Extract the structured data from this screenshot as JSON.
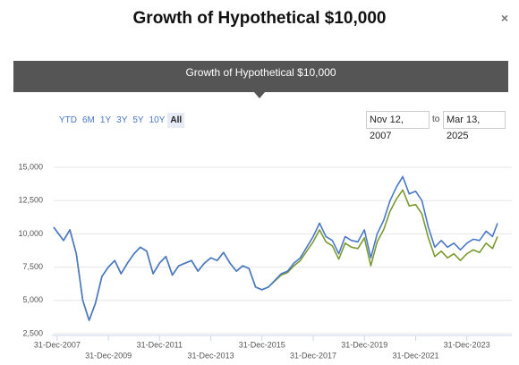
{
  "modal": {
    "title": "Growth of Hypothetical $10,000",
    "close": "×"
  },
  "range_buttons": [
    "YTD",
    "6M",
    "1Y",
    "3Y",
    "5Y",
    "10Y",
    "All"
  ],
  "range_selected": "All",
  "date_from": "Nov 12, 2007",
  "date_to": "Mar 13, 2025",
  "to_label": "to",
  "chart_data": {
    "type": "line",
    "title": "Growth of Hypothetical $10,000",
    "x": [
      "2007-11-12",
      "2008-03-31",
      "2008-06-30",
      "2008-09-30",
      "2008-12-31",
      "2009-03-31",
      "2009-06-30",
      "2009-09-30",
      "2009-12-31",
      "2010-03-31",
      "2010-06-30",
      "2010-09-30",
      "2010-12-31",
      "2011-03-31",
      "2011-06-30",
      "2011-09-30",
      "2011-12-31",
      "2012-03-31",
      "2012-06-30",
      "2012-09-30",
      "2012-12-31",
      "2013-03-31",
      "2013-06-30",
      "2013-09-30",
      "2013-12-31",
      "2014-03-31",
      "2014-06-30",
      "2014-09-30",
      "2014-12-31",
      "2015-03-31",
      "2015-06-30",
      "2015-09-30",
      "2015-12-31",
      "2016-03-31",
      "2016-06-30",
      "2016-09-30",
      "2016-12-31",
      "2017-03-31",
      "2017-06-30",
      "2017-09-30",
      "2017-12-31",
      "2018-03-31",
      "2018-06-30",
      "2018-09-30",
      "2018-12-31",
      "2019-03-31",
      "2019-06-30",
      "2019-09-30",
      "2019-12-31",
      "2020-03-31",
      "2020-06-30",
      "2020-09-30",
      "2020-12-31",
      "2021-03-31",
      "2021-06-30",
      "2021-09-30",
      "2021-12-31",
      "2022-03-31",
      "2022-06-30",
      "2022-09-30",
      "2022-12-31",
      "2023-03-31",
      "2023-06-30",
      "2023-09-30",
      "2023-12-31",
      "2024-03-31",
      "2024-06-30",
      "2024-09-30",
      "2024-12-31",
      "2025-03-13"
    ],
    "series": [
      {
        "color": "#7a9a2e",
        "values": [
          10500,
          9500,
          10300,
          8500,
          5000,
          3500,
          4800,
          6800,
          7500,
          8000,
          7000,
          7800,
          8500,
          9000,
          8700,
          7000,
          7800,
          8300,
          6900,
          7600,
          7800,
          8000,
          7200,
          7800,
          8200,
          8000,
          8600,
          7800,
          7200,
          7600,
          7400,
          6000,
          5800,
          6000,
          6450,
          6900,
          7100,
          7600,
          8000,
          8700,
          9400,
          10300,
          9400,
          9100,
          8100,
          9300,
          9000,
          8900,
          9700,
          7600,
          9400,
          10300,
          11700,
          12600,
          13300,
          12100,
          12200,
          11500,
          9700,
          8300,
          8700,
          8200,
          8500,
          8000,
          8500,
          8800,
          8600,
          9300,
          8900,
          9800
        ]
      },
      {
        "color": "#4a78c8",
        "values": [
          10500,
          9500,
          10300,
          8500,
          5000,
          3500,
          4800,
          6800,
          7500,
          8000,
          7000,
          7800,
          8500,
          9000,
          8700,
          7000,
          7800,
          8300,
          6900,
          7600,
          7800,
          8000,
          7200,
          7800,
          8200,
          8000,
          8600,
          7800,
          7200,
          7600,
          7400,
          6000,
          5800,
          6000,
          6500,
          7000,
          7200,
          7800,
          8200,
          9000,
          9800,
          10800,
          9800,
          9500,
          8500,
          9800,
          9500,
          9400,
          10300,
          8200,
          10000,
          11000,
          12500,
          13500,
          14300,
          13000,
          13200,
          12500,
          10500,
          9000,
          9500,
          9000,
          9300,
          8800,
          9300,
          9600,
          9500,
          10200,
          9800,
          10800
        ]
      }
    ],
    "xlim": [
      "2007-11-12",
      "2025-03-13"
    ],
    "xticks": [
      {
        "value": "2007-12-31",
        "label": "31-Dec-2007"
      },
      {
        "value": "2009-12-31",
        "label": "31-Dec-2009"
      },
      {
        "value": "2011-12-31",
        "label": "31-Dec-2011"
      },
      {
        "value": "2013-12-31",
        "label": "31-Dec-2013"
      },
      {
        "value": "2015-12-31",
        "label": "31-Dec-2015"
      },
      {
        "value": "2017-12-31",
        "label": "31-Dec-2017"
      },
      {
        "value": "2019-12-31",
        "label": "31-Dec-2019"
      },
      {
        "value": "2021-12-31",
        "label": "31-Dec-2021"
      },
      {
        "value": "2023-12-31",
        "label": "31-Dec-2023"
      }
    ],
    "ylim": [
      2500,
      15000
    ],
    "yticks": [
      {
        "value": 2500,
        "label": "2,500"
      },
      {
        "value": 5000,
        "label": "5,000"
      },
      {
        "value": 7500,
        "label": "7,500"
      },
      {
        "value": 10000,
        "label": "10,000"
      },
      {
        "value": 12500,
        "label": "12,500"
      },
      {
        "value": 15000,
        "label": "15,000"
      }
    ],
    "grid": true
  }
}
